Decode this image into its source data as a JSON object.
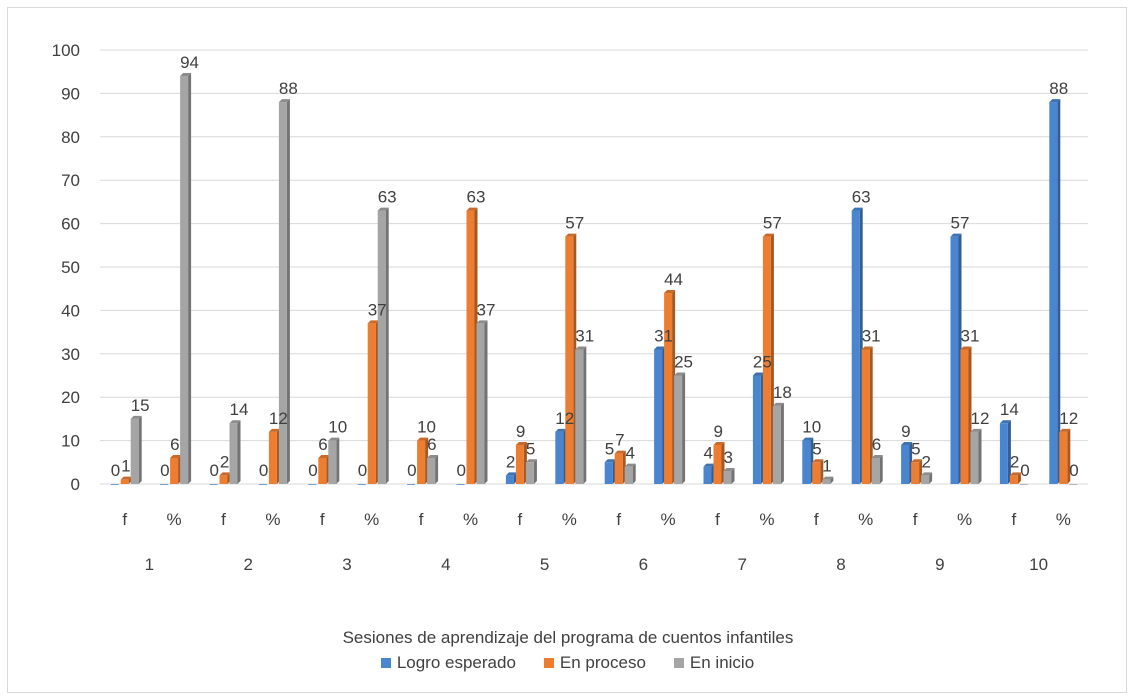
{
  "chart_data": {
    "type": "bar",
    "title": "",
    "xlabel": "Sesiones de aprendizaje del programa de cuentos infantiles",
    "ylabel": "",
    "ylim": [
      0,
      100
    ],
    "yticks": [
      "0",
      "10",
      "20",
      "30",
      "40",
      "50",
      "60",
      "70",
      "80",
      "90",
      "100"
    ],
    "grid": true,
    "legend_position": "bottom",
    "groups": [
      "1",
      "2",
      "3",
      "4",
      "5",
      "6",
      "7",
      "8",
      "9",
      "10"
    ],
    "categories": [
      "f",
      "%",
      "f",
      "%",
      "f",
      "%",
      "f",
      "%",
      "f",
      "%",
      "f",
      "%",
      "f",
      "%",
      "f",
      "%",
      "f",
      "%",
      "f",
      "%"
    ],
    "series": [
      {
        "name": "Logro esperado",
        "color": "#4a86cf",
        "values": [
          0,
          0,
          0,
          0,
          0,
          0,
          0,
          0,
          2,
          12,
          5,
          31,
          4,
          25,
          10,
          63,
          9,
          57,
          14,
          88
        ]
      },
      {
        "name": "En proceso",
        "color": "#ed7d31",
        "values": [
          1,
          6,
          2,
          12,
          6,
          37,
          10,
          63,
          9,
          57,
          7,
          44,
          9,
          57,
          5,
          31,
          5,
          31,
          2,
          12
        ]
      },
      {
        "name": "En inicio",
        "color": "#a5a5a5",
        "values": [
          15,
          94,
          14,
          88,
          10,
          63,
          6,
          37,
          5,
          31,
          4,
          25,
          3,
          18,
          1,
          6,
          2,
          12,
          0,
          0
        ]
      }
    ]
  }
}
